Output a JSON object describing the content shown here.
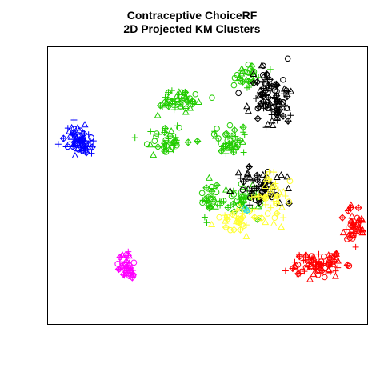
{
  "chart_data": {
    "type": "scatter",
    "title": [
      "Contraceptive ChoiceRF",
      "2D Projected KM Clusters"
    ],
    "xlabel": "",
    "ylabel": "",
    "xlim": [
      0,
      100
    ],
    "ylim": [
      0,
      100
    ],
    "grid": false,
    "legend": "none",
    "axes": "box only, no ticks or tick labels",
    "markers": [
      "circle",
      "triangle",
      "plus",
      "diamond-cross"
    ],
    "series": [
      {
        "color": "#0000FF",
        "clusters": [
          {
            "center": [
              9.5,
              66
            ],
            "spread": [
              3.0,
              4.2
            ],
            "count": 65
          }
        ]
      },
      {
        "color": "#FF00FF",
        "clusters": [
          {
            "center": [
              24,
              20
            ],
            "spread": [
              1.6,
              4.0
            ],
            "count": 40
          }
        ]
      },
      {
        "color": "#FF0000",
        "clusters": [
          {
            "center": [
              86,
              21
            ],
            "spread": [
              6.5,
              3.5
            ],
            "count": 80
          },
          {
            "center": [
              97,
              36
            ],
            "spread": [
              2.5,
              5.0
            ],
            "count": 45
          }
        ]
      },
      {
        "color": "#22CC00",
        "clusters": [
          {
            "center": [
              42,
              81
            ],
            "spread": [
              5.5,
              3.0
            ],
            "count": 45
          },
          {
            "center": [
              37.5,
              66
            ],
            "spread": [
              5.0,
              3.5
            ],
            "count": 40
          },
          {
            "center": [
              63,
              90
            ],
            "spread": [
              3.5,
              3.5
            ],
            "count": 30
          },
          {
            "center": [
              57,
              66
            ],
            "spread": [
              4.0,
              4.0
            ],
            "count": 40
          },
          {
            "center": [
              52,
              45
            ],
            "spread": [
              4.0,
              4.0
            ],
            "count": 35
          },
          {
            "center": [
              63,
              45
            ],
            "spread": [
              3.5,
              4.0
            ],
            "count": 35
          }
        ]
      },
      {
        "color": "#000000",
        "clusters": [
          {
            "center": [
              70,
              82
            ],
            "spread": [
              5.0,
              7.0
            ],
            "count": 95
          },
          {
            "center": [
              67,
              48
            ],
            "spread": [
              6.0,
              5.5
            ],
            "count": 60
          }
        ]
      },
      {
        "color": "#FFFF33",
        "clusters": [
          {
            "center": [
              71,
              44
            ],
            "spread": [
              4.5,
              7.0
            ],
            "count": 45
          },
          {
            "center": [
              59,
              38
            ],
            "spread": [
              4.5,
              3.5
            ],
            "count": 30
          }
        ]
      },
      {
        "color": "#33DDDD",
        "clusters": [
          {
            "center": [
              62,
              41
            ],
            "spread": [
              1.0,
              1.0
            ],
            "count": 3
          }
        ]
      }
    ]
  }
}
